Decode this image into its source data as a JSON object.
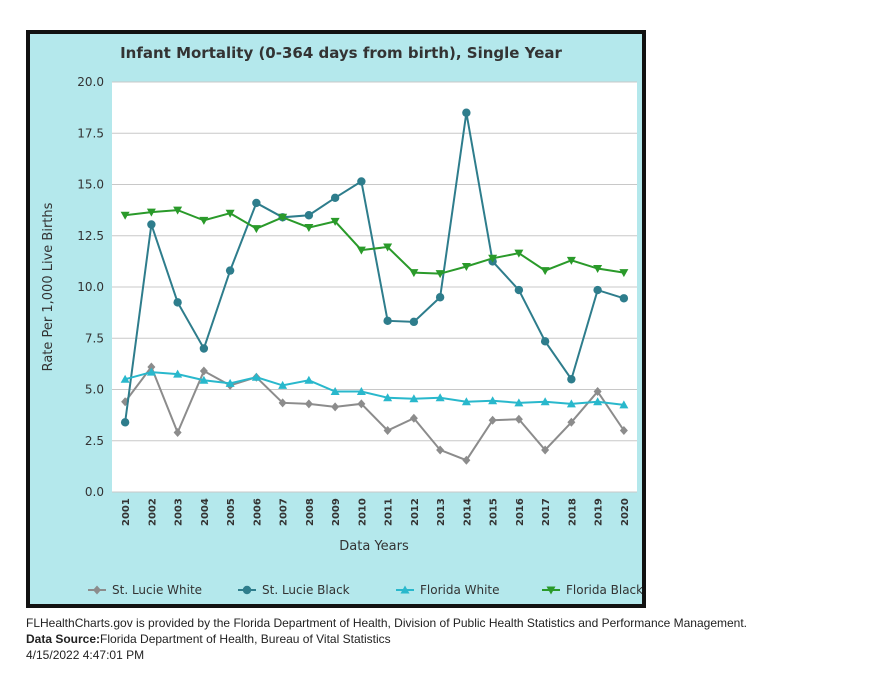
{
  "chart_data": {
    "type": "line",
    "title": "Infant Mortality (0-364 days from birth), Single Year",
    "xlabel": "Data Years",
    "ylabel": "Rate Per 1,000 Live Births",
    "ylim": [
      0,
      20
    ],
    "yticks": [
      "0.0",
      "2.5",
      "5.0",
      "7.5",
      "10.0",
      "12.5",
      "15.0",
      "17.5",
      "20.0"
    ],
    "grid": true,
    "legend_position": "bottom",
    "categories": [
      "2001",
      "2002",
      "2003",
      "2004",
      "2005",
      "2006",
      "2007",
      "2008",
      "2009",
      "2010",
      "2011",
      "2012",
      "2013",
      "2014",
      "2015",
      "2016",
      "2017",
      "2018",
      "2019",
      "2020"
    ],
    "series": [
      {
        "name": "St. Lucie White",
        "color": "#8c8c8c",
        "marker": "diamond",
        "values": [
          4.4,
          6.1,
          2.9,
          5.9,
          5.2,
          5.6,
          4.35,
          4.3,
          4.15,
          4.3,
          3.0,
          3.6,
          2.05,
          1.55,
          3.5,
          3.55,
          2.05,
          3.4,
          4.9,
          3.0
        ]
      },
      {
        "name": "St. Lucie Black",
        "color": "#2e7d8c",
        "marker": "circle",
        "values": [
          3.4,
          13.05,
          9.25,
          7.0,
          10.8,
          14.1,
          13.4,
          13.5,
          14.35,
          15.15,
          8.35,
          8.3,
          9.5,
          18.5,
          11.25,
          9.85,
          7.35,
          5.5,
          9.85,
          9.45
        ]
      },
      {
        "name": "Florida White",
        "color": "#29b8cc",
        "marker": "triangle-up",
        "values": [
          5.5,
          5.85,
          5.75,
          5.45,
          5.3,
          5.6,
          5.2,
          5.45,
          4.9,
          4.9,
          4.6,
          4.55,
          4.6,
          4.4,
          4.45,
          4.35,
          4.4,
          4.3,
          4.4,
          4.25
        ]
      },
      {
        "name": "Florida Black",
        "color": "#2a9a2a",
        "marker": "triangle-down",
        "values": [
          13.5,
          13.65,
          13.75,
          13.25,
          13.6,
          12.85,
          13.4,
          12.9,
          13.2,
          11.8,
          11.95,
          10.7,
          10.65,
          11.0,
          11.4,
          11.65,
          10.8,
          11.3,
          10.9,
          10.7
        ]
      }
    ]
  },
  "footer": {
    "line1": "FLHealthCharts.gov is provided by the Florida Department of Health, Division of Public Health Statistics and Performance Management.",
    "source_label": "Data Source:",
    "source_text": "Florida Department of Health, Bureau of Vital Statistics",
    "timestamp": "4/15/2022 4:47:01 PM"
  }
}
